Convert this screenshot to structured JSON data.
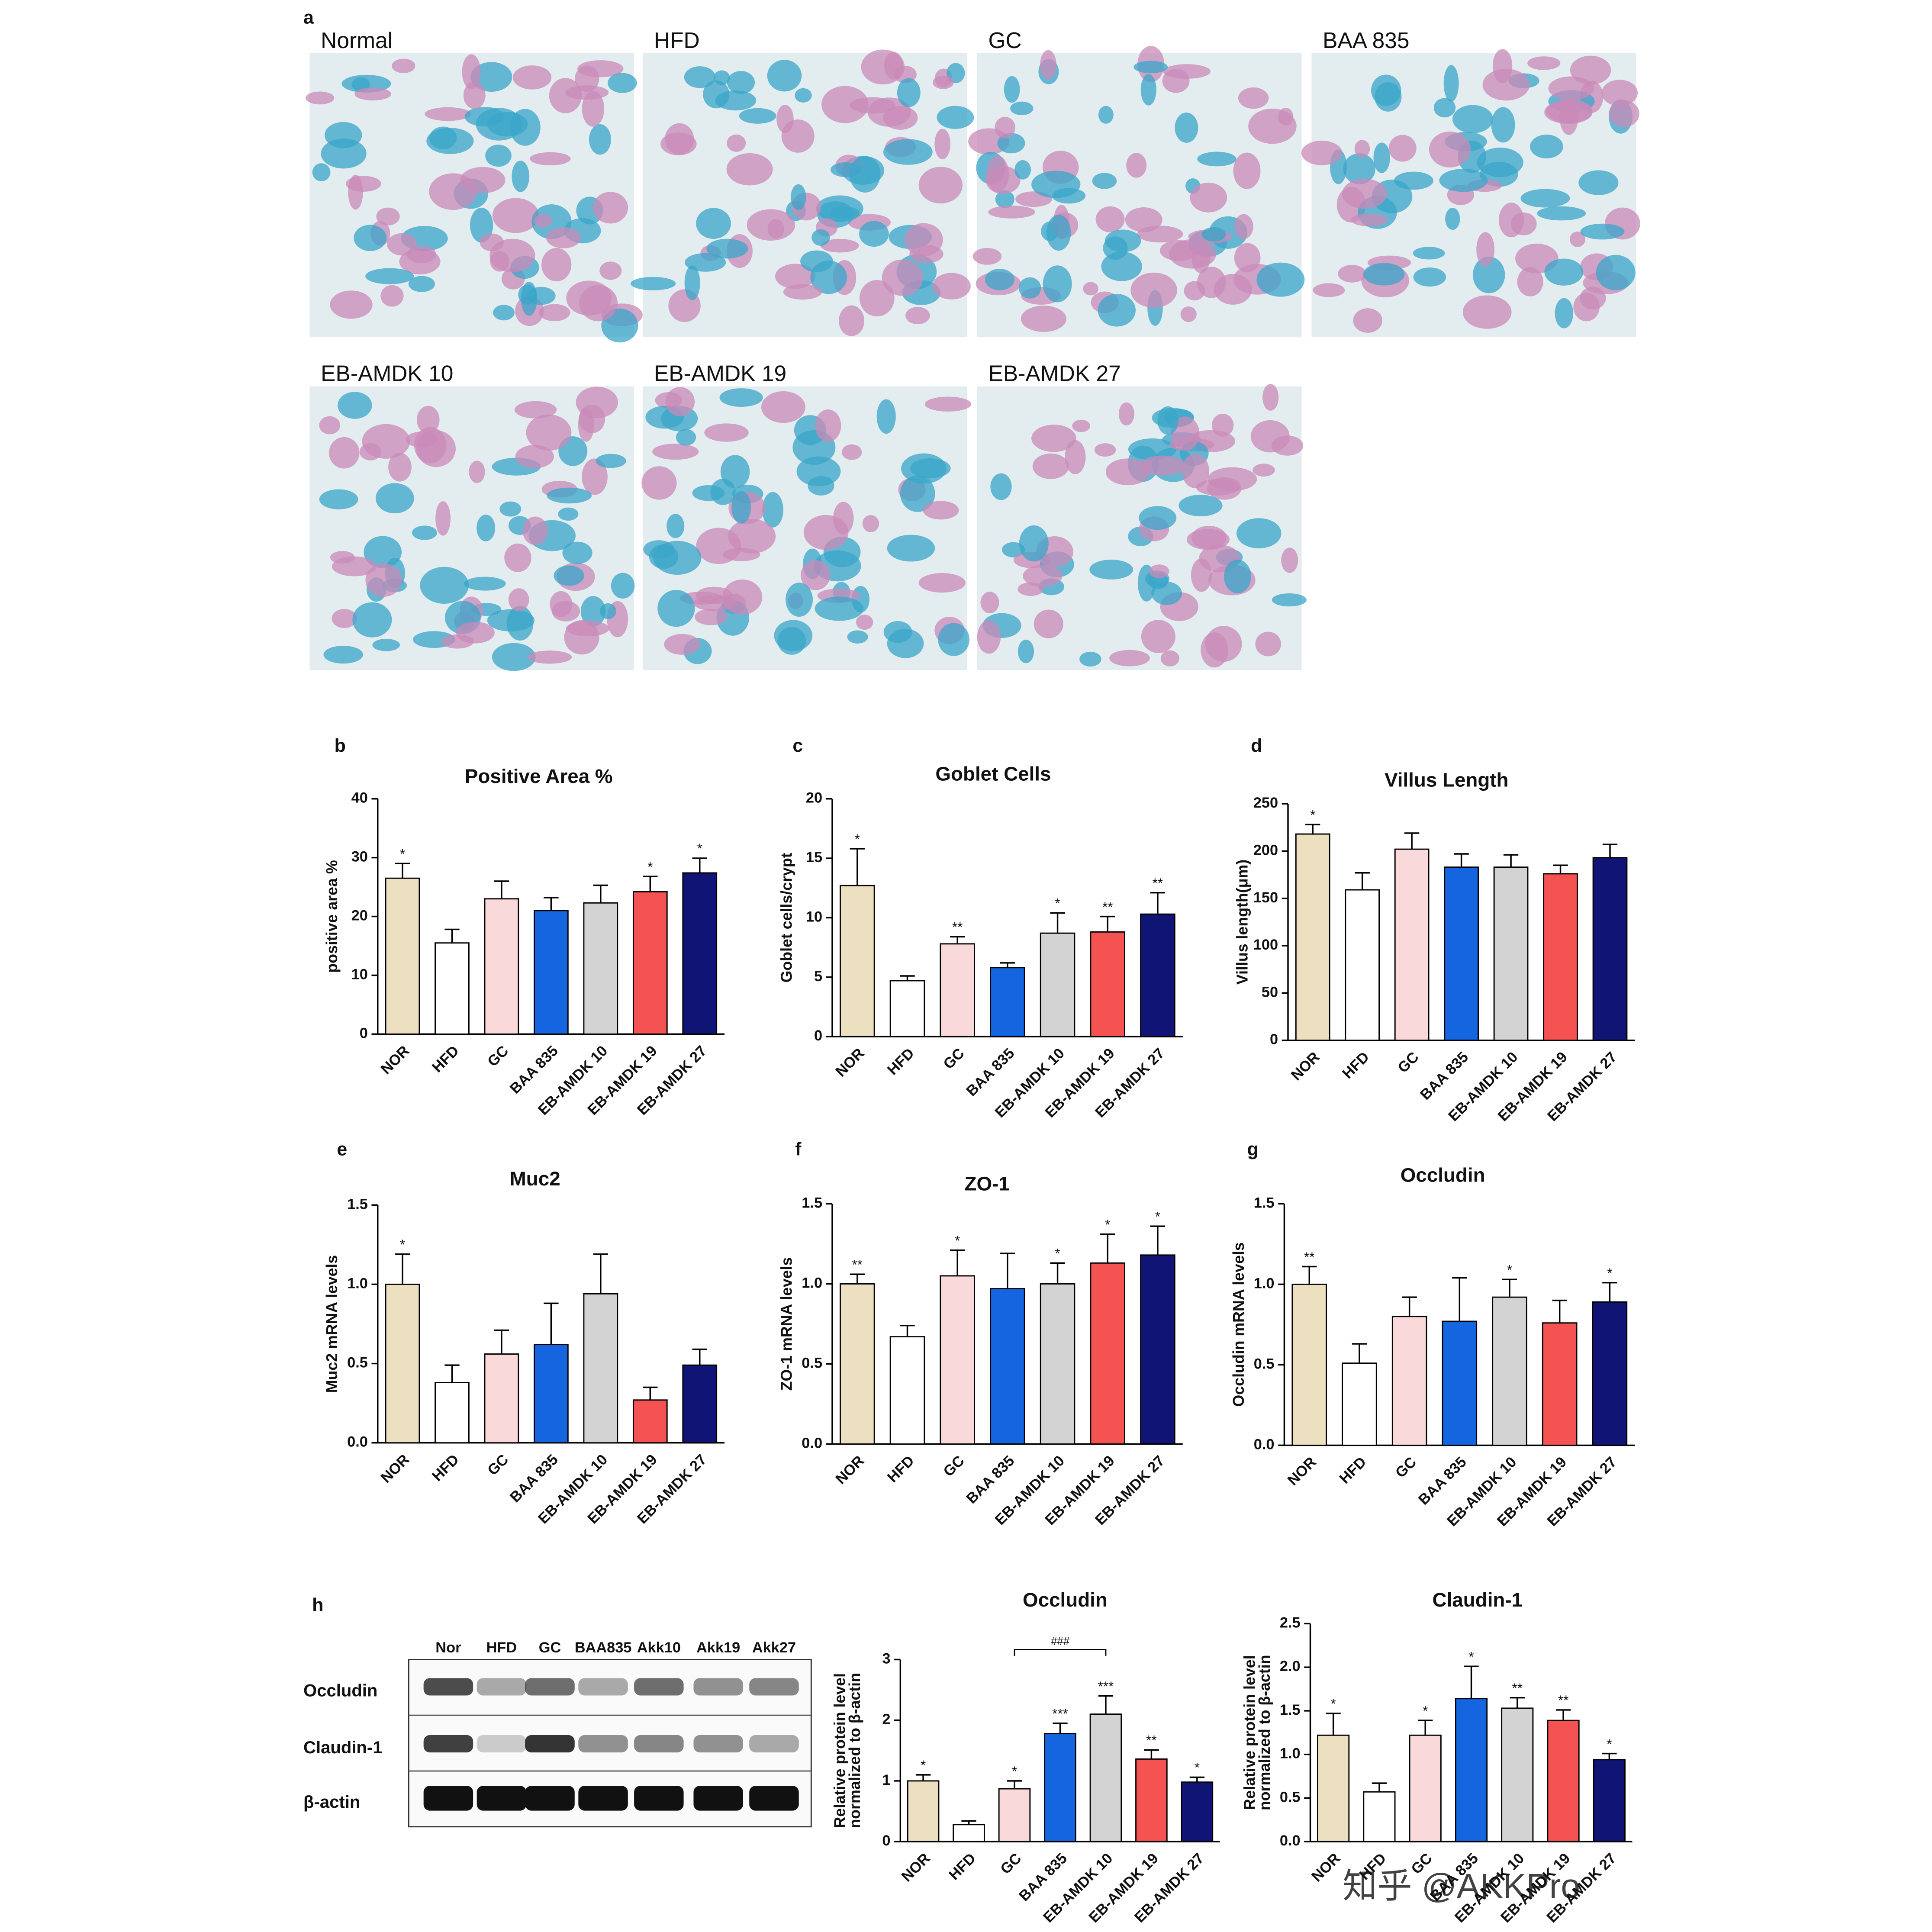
{
  "panel_letters": [
    "a",
    "b",
    "c",
    "d",
    "e",
    "f",
    "g",
    "h"
  ],
  "histology": {
    "labels": [
      "Normal",
      "HFD",
      "GC",
      "BAA 835",
      "EB-AMDK 10",
      "EB-AMDK 19",
      "EB-AMDK 27"
    ]
  },
  "blot": {
    "lanes": [
      "Nor",
      "HFD",
      "GC",
      "BAA835",
      "Akk10",
      "Akk19",
      "Akk27"
    ],
    "proteins": [
      "Occludin",
      "Claudin-1",
      "β-actin"
    ]
  },
  "watermark": "知乎 @AKKPro",
  "chart_data": [
    {
      "type": "bar",
      "title": "Positive Area %",
      "ylabel": [
        "positive area %"
      ],
      "categories": [
        "NOR",
        "HFD",
        "GC",
        "BAA 835",
        "EB-AMDK 10",
        "EB-AMDK 19",
        "EB-AMDK 27"
      ],
      "values": [
        26.5,
        15.5,
        23,
        21,
        22.3,
        24.2,
        27.4
      ],
      "errors": [
        2.5,
        2.3,
        3,
        2.2,
        3,
        2.6,
        2.5
      ],
      "annotations": [
        "*",
        null,
        null,
        null,
        null,
        "*",
        "*"
      ],
      "colors": [
        "#ede0c0",
        "#ffffff",
        "#f9d9da",
        "#1565e0",
        "#d3d3d3",
        "#f55252",
        "#101575"
      ],
      "ylim": [
        0,
        40
      ],
      "yticks": [
        0,
        10,
        20,
        30,
        40
      ]
    },
    {
      "type": "bar",
      "title": "Goblet Cells",
      "ylabel": [
        "Goblet cells/crypt"
      ],
      "categories": [
        "NOR",
        "HFD",
        "GC",
        "BAA 835",
        "EB-AMDK 10",
        "EB-AMDK 19",
        "EB-AMDK 27"
      ],
      "values": [
        12.7,
        4.7,
        7.8,
        5.8,
        8.7,
        8.8,
        10.3
      ],
      "errors": [
        3.1,
        0.4,
        0.6,
        0.4,
        1.7,
        1.3,
        1.8
      ],
      "annotations": [
        "*",
        null,
        "**",
        null,
        "*",
        "**",
        "**"
      ],
      "colors": [
        "#ede0c0",
        "#ffffff",
        "#f9d9da",
        "#1565e0",
        "#d3d3d3",
        "#f55252",
        "#101575"
      ],
      "ylim": [
        0,
        20
      ],
      "yticks": [
        0,
        5,
        10,
        15,
        20
      ]
    },
    {
      "type": "bar",
      "title": "Villus Length",
      "ylabel": [
        "Villus length(μm)"
      ],
      "categories": [
        "NOR",
        "HFD",
        "GC",
        "BAA 835",
        "EB-AMDK 10",
        "EB-AMDK 19",
        "EB-AMDK 27"
      ],
      "values": [
        218,
        159,
        202,
        183,
        183,
        176,
        193
      ],
      "errors": [
        10,
        18,
        17,
        14,
        13,
        9,
        14
      ],
      "annotations": [
        "*",
        null,
        null,
        null,
        null,
        null,
        null
      ],
      "colors": [
        "#ede0c0",
        "#ffffff",
        "#f9d9da",
        "#1565e0",
        "#d3d3d3",
        "#f55252",
        "#101575"
      ],
      "ylim": [
        0,
        250
      ],
      "yticks": [
        0,
        50,
        100,
        150,
        200,
        250
      ]
    },
    {
      "type": "bar",
      "title": "Muc2",
      "ylabel": [
        "Muc2 mRNA levels"
      ],
      "categories": [
        "NOR",
        "HFD",
        "GC",
        "BAA 835",
        "EB-AMDK 10",
        "EB-AMDK 19",
        "EB-AMDK 27"
      ],
      "values": [
        1.0,
        0.38,
        0.56,
        0.62,
        0.94,
        0.27,
        0.49
      ],
      "errors": [
        0.19,
        0.11,
        0.15,
        0.26,
        0.25,
        0.08,
        0.1
      ],
      "annotations": [
        "*",
        null,
        null,
        null,
        null,
        null,
        null
      ],
      "colors": [
        "#ede0c0",
        "#ffffff",
        "#f9d9da",
        "#1565e0",
        "#d3d3d3",
        "#f55252",
        "#101575"
      ],
      "ylim": [
        0,
        1.5
      ],
      "yticks": [
        {
          "value": 0,
          "label": "0.0"
        },
        0.5,
        {
          "value": 1,
          "label": "1.0"
        },
        1.5
      ]
    },
    {
      "type": "bar",
      "title": "ZO-1",
      "ylabel": [
        "ZO-1 mRNA levels"
      ],
      "categories": [
        "NOR",
        "HFD",
        "GC",
        "BAA 835",
        "EB-AMDK 10",
        "EB-AMDK 19",
        "EB-AMDK 27"
      ],
      "values": [
        1.0,
        0.67,
        1.05,
        0.97,
        1.0,
        1.13,
        1.18
      ],
      "errors": [
        0.06,
        0.07,
        0.16,
        0.22,
        0.13,
        0.18,
        0.18
      ],
      "annotations": [
        "**",
        null,
        "*",
        null,
        "*",
        "*",
        "*"
      ],
      "colors": [
        "#ede0c0",
        "#ffffff",
        "#f9d9da",
        "#1565e0",
        "#d3d3d3",
        "#f55252",
        "#101575"
      ],
      "ylim": [
        0,
        1.5
      ],
      "yticks": [
        {
          "value": 0,
          "label": "0.0"
        },
        0.5,
        {
          "value": 1,
          "label": "1.0"
        },
        1.5
      ]
    },
    {
      "type": "bar",
      "title": "Occludin",
      "ylabel": [
        "Occludin mRNA levels"
      ],
      "categories": [
        "NOR",
        "HFD",
        "GC",
        "BAA 835",
        "EB-AMDK 10",
        "EB-AMDK 19",
        "EB-AMDK 27"
      ],
      "values": [
        1.0,
        0.51,
        0.8,
        0.77,
        0.92,
        0.76,
        0.89
      ],
      "errors": [
        0.11,
        0.12,
        0.12,
        0.27,
        0.11,
        0.14,
        0.12
      ],
      "annotations": [
        "**",
        null,
        null,
        null,
        "*",
        null,
        "*"
      ],
      "colors": [
        "#ede0c0",
        "#ffffff",
        "#f9d9da",
        "#1565e0",
        "#d3d3d3",
        "#f55252",
        "#101575"
      ],
      "ylim": [
        0,
        1.5
      ],
      "yticks": [
        {
          "value": 0,
          "label": "0.0"
        },
        0.5,
        {
          "value": 1,
          "label": "1.0"
        },
        1.5
      ]
    },
    {
      "type": "bar",
      "title": "Occludin",
      "ylabel": [
        "Relative protein level",
        "normalized to β-actin"
      ],
      "categories": [
        "NOR",
        "HFD",
        "GC",
        "BAA 835",
        "EB-AMDK 10",
        "EB-AMDK 19",
        "EB-AMDK 27"
      ],
      "values": [
        1.0,
        0.28,
        0.87,
        1.78,
        2.1,
        1.36,
        0.98
      ],
      "errors": [
        0.1,
        0.06,
        0.13,
        0.17,
        0.3,
        0.15,
        0.08
      ],
      "annotations": [
        "*",
        null,
        "*",
        "***",
        "***",
        "**",
        "*"
      ],
      "bracket": {
        "label": "###",
        "categories": [
          "GC",
          "EB-AMDK 10"
        ]
      },
      "colors": [
        "#ede0c0",
        "#ffffff",
        "#f9d9da",
        "#1565e0",
        "#d3d3d3",
        "#f55252",
        "#101575"
      ],
      "ylim": [
        0,
        3
      ],
      "yticks": [
        0,
        1,
        2,
        3
      ]
    },
    {
      "type": "bar",
      "title": "Claudin-1",
      "ylabel": [
        "Relative protein level",
        "normalized to β-actin"
      ],
      "categories": [
        "NOR",
        "HFD",
        "GC",
        "BAA 835",
        "EB-AMDK 10",
        "EB-AMDK 19",
        "EB-AMDK 27"
      ],
      "values": [
        1.22,
        0.57,
        1.22,
        1.64,
        1.53,
        1.39,
        0.94
      ],
      "errors": [
        0.25,
        0.1,
        0.17,
        0.37,
        0.12,
        0.12,
        0.07
      ],
      "annotations": [
        "*",
        null,
        "*",
        "*",
        "**",
        "**",
        "*"
      ],
      "colors": [
        "#ede0c0",
        "#ffffff",
        "#f9d9da",
        "#1565e0",
        "#d3d3d3",
        "#f55252",
        "#101575"
      ],
      "ylim": [
        0,
        2.5
      ],
      "yticks": [
        {
          "value": 0,
          "label": "0.0"
        },
        0.5,
        {
          "value": 1,
          "label": "1.0"
        },
        1.5,
        {
          "value": 2,
          "label": "2.0"
        },
        2.5
      ]
    }
  ]
}
